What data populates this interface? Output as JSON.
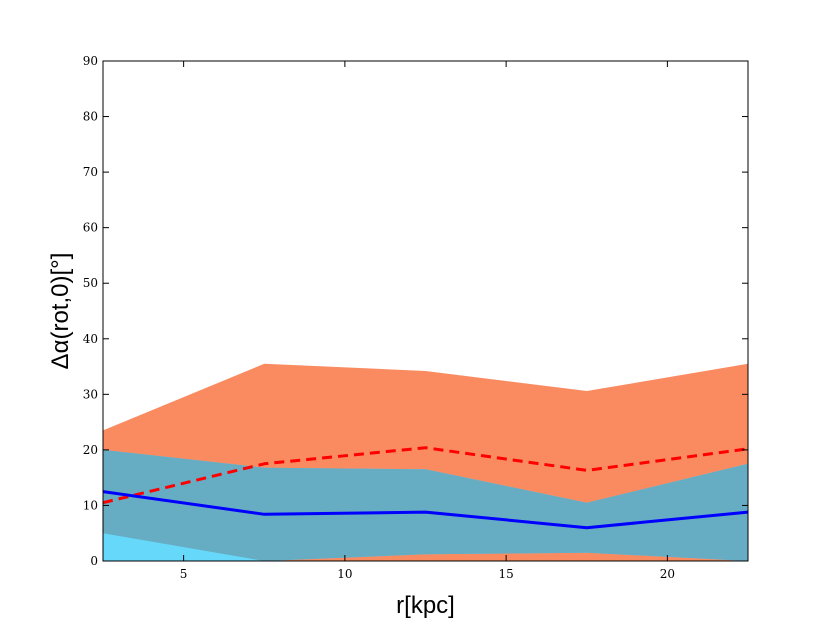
{
  "chart_data": {
    "type": "area",
    "title": "",
    "xlabel": "r[kpc]",
    "ylabel": "Δα(rot,0)[°]",
    "xlim": [
      2.5,
      22.5
    ],
    "ylim": [
      0,
      90
    ],
    "xticks": [
      5,
      10,
      15,
      20
    ],
    "yticks": [
      0,
      10,
      20,
      30,
      40,
      50,
      60,
      70,
      80,
      90
    ],
    "grid": false,
    "x": [
      2.5,
      7.5,
      12.5,
      17.5,
      22.5
    ],
    "series": [
      {
        "style": "filled-band",
        "color": "#fa8b61",
        "lower": [
          5.0,
          0.0,
          0.0,
          0.0,
          0.0
        ],
        "upper": [
          23.5,
          35.5,
          34.2,
          30.6,
          35.5
        ]
      },
      {
        "style": "filled-band",
        "color": "#66d8fa",
        "lower": [
          0.0,
          0.0,
          1.2,
          1.5,
          0.0
        ],
        "upper": [
          20.0,
          16.8,
          16.5,
          10.5,
          17.5
        ]
      },
      {
        "style": "dashed-line",
        "color": "#ff0000",
        "values": [
          10.5,
          17.5,
          20.4,
          16.3,
          20.2
        ]
      },
      {
        "style": "solid-line",
        "color": "#0000ff",
        "values": [
          12.5,
          8.4,
          8.8,
          6.0,
          8.8
        ]
      }
    ],
    "overlap_color": "#66acc3"
  }
}
